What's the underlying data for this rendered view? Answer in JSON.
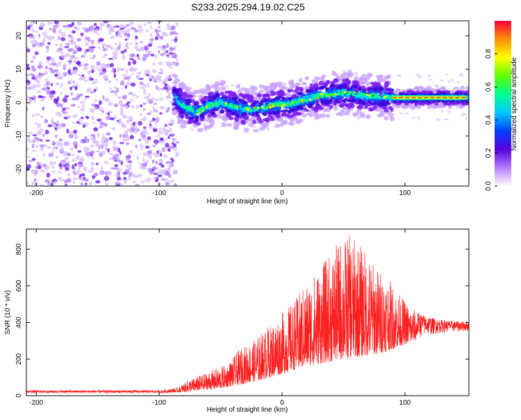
{
  "title": "S233.2025.294.19.02.C25",
  "chart_data": [
    {
      "type": "heatmap",
      "xlabel": "Height of straight line (km)",
      "ylabel": "Frequency (Hz)",
      "xlim": [
        -208,
        152
      ],
      "ylim": [
        -25,
        24.5
      ],
      "x_ticks": [
        -200,
        -100,
        0,
        100
      ],
      "y_ticks": [
        -20,
        -10,
        0,
        10,
        20
      ],
      "colorbar": {
        "label": "Normalized spectral amplitude",
        "range": [
          0,
          1
        ],
        "ticks": [
          "0.0",
          "0.2",
          "0.4",
          "0.6",
          "0.8"
        ],
        "colormap": [
          "#ffffff",
          "#b57cff",
          "#5a00e0",
          "#0040ff",
          "#00c8ff",
          "#00ff90",
          "#60ff00",
          "#ffff00",
          "#ff9000",
          "#ff0040"
        ]
      },
      "ridge_frequency": [
        [
          -88,
          2
        ],
        [
          -80,
          -1
        ],
        [
          -70,
          -3
        ],
        [
          -60,
          -1
        ],
        [
          -50,
          0
        ],
        [
          -40,
          -1
        ],
        [
          -30,
          -2
        ],
        [
          -20,
          -2
        ],
        [
          -10,
          -1
        ],
        [
          0,
          -0.5
        ],
        [
          10,
          0
        ],
        [
          20,
          1
        ],
        [
          30,
          2
        ],
        [
          40,
          2.5
        ],
        [
          50,
          3
        ],
        [
          60,
          2.5
        ],
        [
          70,
          2
        ],
        [
          80,
          2
        ],
        [
          90,
          1.5
        ],
        [
          100,
          1.5
        ],
        [
          110,
          1.5
        ],
        [
          120,
          1.5
        ],
        [
          130,
          1.5
        ],
        [
          150,
          1.5
        ]
      ],
      "noise_region_x": [
        -208,
        -88
      ]
    },
    {
      "type": "line",
      "xlabel": "Height of straight line (km)",
      "ylabel": "SNR (10 * v/v)",
      "xlim": [
        -208,
        152
      ],
      "ylim": [
        0,
        910
      ],
      "x_ticks": [
        -200,
        -100,
        0,
        100
      ],
      "y_ticks": [
        0,
        200,
        400,
        600,
        800
      ],
      "color": "#ff2020",
      "series": [
        {
          "name": "SNR",
          "envelope": [
            [
              -208,
              30
            ],
            [
              -100,
              30
            ],
            [
              -85,
              45
            ],
            [
              -75,
              90
            ],
            [
              -60,
              130
            ],
            [
              -45,
              170
            ],
            [
              -35,
              250
            ],
            [
              -20,
              320
            ],
            [
              -5,
              420
            ],
            [
              10,
              520
            ],
            [
              20,
              620
            ],
            [
              30,
              700
            ],
            [
              40,
              780
            ],
            [
              48,
              860
            ],
            [
              55,
              880
            ],
            [
              65,
              820
            ],
            [
              75,
              720
            ],
            [
              85,
              660
            ],
            [
              95,
              560
            ],
            [
              105,
              480
            ],
            [
              115,
              440
            ],
            [
              125,
              420
            ],
            [
              135,
              410
            ],
            [
              152,
              405
            ]
          ],
          "floor": [
            [
              -208,
              15
            ],
            [
              -100,
              15
            ],
            [
              -80,
              20
            ],
            [
              -50,
              40
            ],
            [
              -20,
              80
            ],
            [
              0,
              120
            ],
            [
              20,
              160
            ],
            [
              50,
              200
            ],
            [
              80,
              230
            ],
            [
              100,
              280
            ],
            [
              115,
              320
            ],
            [
              130,
              340
            ],
            [
              152,
              350
            ]
          ]
        }
      ]
    }
  ]
}
